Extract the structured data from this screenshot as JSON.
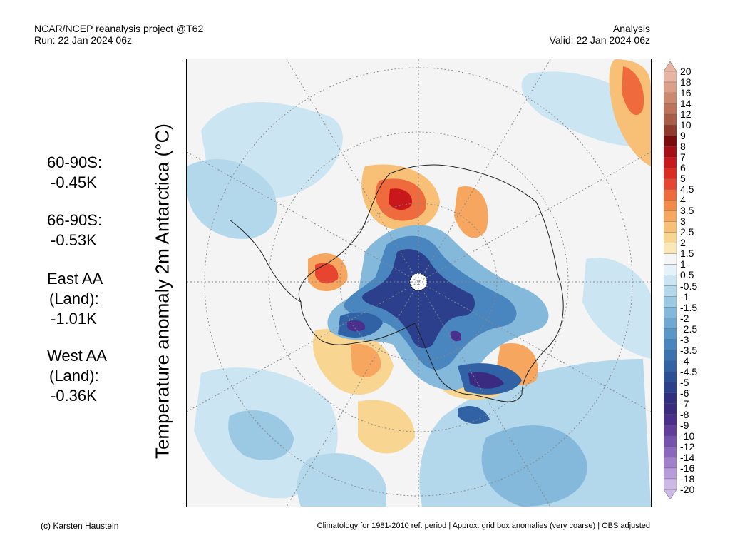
{
  "header": {
    "left_line1": "NCAR/NCEP reanalysis project @T62",
    "left_line2": "Run: 22 Jan 2024 06z",
    "right_line1": "Analysis",
    "right_line2": "Valid: 22 Jan 2024 06z"
  },
  "axis_label": "Temperature anomaly 2m Antarctica (°C)",
  "stats": [
    {
      "label": "60-90S:",
      "value": "-0.45K"
    },
    {
      "label": "66-90S:",
      "value": "-0.53K"
    },
    {
      "label": "East AA",
      "label2": "(Land):",
      "value": "-1.01K"
    },
    {
      "label": "West AA",
      "label2": "(Land):",
      "value": "-0.36K"
    }
  ],
  "legend": {
    "levels": [
      "20",
      "18",
      "16",
      "14",
      "12",
      "10",
      "9",
      "8",
      "7",
      "6",
      "5",
      "4.5",
      "4",
      "3.5",
      "3",
      "2.5",
      "2",
      "1.5",
      "1",
      "0.5",
      "-0.5",
      "-1",
      "-1.5",
      "-2",
      "-2.5",
      "-3",
      "-3.5",
      "-4",
      "-4.5",
      "-5",
      "-6",
      "-7",
      "-8",
      "-9",
      "-10",
      "-12",
      "-14",
      "-16",
      "-18",
      "-20"
    ],
    "colors": [
      "#e8b5a2",
      "#dca089",
      "#cd8970",
      "#bd735a",
      "#a95c46",
      "#8f3a2b",
      "#7d0b0b",
      "#a50f15",
      "#c8181b",
      "#dc2c22",
      "#e84530",
      "#ef6a3c",
      "#f38b4b",
      "#f6a65e",
      "#f8bf76",
      "#f9d592",
      "#fae8b6",
      "#f6f6f6",
      "#e6f2fa",
      "#cce5f3",
      "#b3d8ec",
      "#9bc9e4",
      "#84b9dc",
      "#6ea8d3",
      "#5a97c9",
      "#4985be",
      "#3b73b1",
      "#3062a5",
      "#2a5098",
      "#2b3f8c",
      "#302f82",
      "#3a2a80",
      "#4b2f8c",
      "#5f3f9b",
      "#7552ad",
      "#8b67bd",
      "#a180cc",
      "#b89bda",
      "#cdb8e6"
    ]
  },
  "footer": {
    "left": "(c) Karsten Haustein",
    "right": "Climatology for 1981-2010 ref. period | Approx. grid box anomalies (very coarse) | OBS adjusted"
  }
}
